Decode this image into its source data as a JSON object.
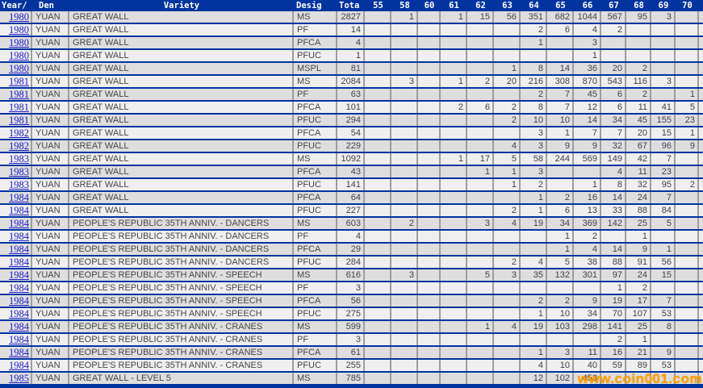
{
  "header": {
    "columns": [
      "Year/",
      "Den",
      "Variety",
      "Desig",
      "Tota",
      "55",
      "58",
      "60",
      "61",
      "62",
      "63",
      "64",
      "65",
      "66",
      "67",
      "68",
      "69",
      "70"
    ]
  },
  "grade_column_order": [
    "55",
    "58",
    "60",
    "61",
    "62",
    "63",
    "64",
    "65",
    "66",
    "67",
    "68",
    "69",
    "70"
  ],
  "rows": [
    {
      "year": "1980",
      "den": "YUAN",
      "variety": "GREAT WALL",
      "desig": "MS",
      "total": "2827",
      "grades": [
        "",
        "1",
        "",
        "1",
        "15",
        "56",
        "351",
        "682",
        "1044",
        "567",
        "95",
        "3",
        ""
      ]
    },
    {
      "year": "1980",
      "den": "YUAN",
      "variety": "GREAT WALL",
      "desig": "PF",
      "total": "14",
      "grades": [
        "",
        "",
        "",
        "",
        "",
        "",
        "2",
        "6",
        "4",
        "2",
        "",
        "",
        ""
      ]
    },
    {
      "year": "1980",
      "den": "YUAN",
      "variety": "GREAT WALL",
      "desig": "PFCA",
      "total": "4",
      "grades": [
        "",
        "",
        "",
        "",
        "",
        "",
        "1",
        "",
        "3",
        "",
        "",
        "",
        ""
      ]
    },
    {
      "year": "1980",
      "den": "YUAN",
      "variety": "GREAT WALL",
      "desig": "PFUC",
      "total": "1",
      "grades": [
        "",
        "",
        "",
        "",
        "",
        "",
        "",
        "",
        "1",
        "",
        "",
        "",
        ""
      ]
    },
    {
      "year": "1980",
      "den": "YUAN",
      "variety": "GREAT WALL",
      "desig": "MSPL",
      "total": "81",
      "grades": [
        "",
        "",
        "",
        "",
        "",
        "1",
        "8",
        "14",
        "36",
        "20",
        "2",
        "",
        ""
      ]
    },
    {
      "year": "1981",
      "den": "YUAN",
      "variety": "GREAT WALL",
      "desig": "MS",
      "total": "2084",
      "grades": [
        "",
        "3",
        "",
        "1",
        "2",
        "20",
        "216",
        "308",
        "870",
        "543",
        "116",
        "3",
        ""
      ]
    },
    {
      "year": "1981",
      "den": "YUAN",
      "variety": "GREAT WALL",
      "desig": "PF",
      "total": "63",
      "grades": [
        "",
        "",
        "",
        "",
        "",
        "",
        "2",
        "7",
        "45",
        "6",
        "2",
        "",
        "1"
      ]
    },
    {
      "year": "1981",
      "den": "YUAN",
      "variety": "GREAT WALL",
      "desig": "PFCA",
      "total": "101",
      "grades": [
        "",
        "",
        "",
        "2",
        "6",
        "2",
        "8",
        "7",
        "12",
        "6",
        "11",
        "41",
        "5"
      ]
    },
    {
      "year": "1981",
      "den": "YUAN",
      "variety": "GREAT WALL",
      "desig": "PFUC",
      "total": "294",
      "grades": [
        "",
        "",
        "",
        "",
        "",
        "2",
        "10",
        "10",
        "14",
        "34",
        "45",
        "155",
        "23"
      ]
    },
    {
      "year": "1982",
      "den": "YUAN",
      "variety": "GREAT WALL",
      "desig": "PFCA",
      "total": "54",
      "grades": [
        "",
        "",
        "",
        "",
        "",
        "",
        "3",
        "1",
        "7",
        "7",
        "20",
        "15",
        "1"
      ]
    },
    {
      "year": "1982",
      "den": "YUAN",
      "variety": "GREAT WALL",
      "desig": "PFUC",
      "total": "229",
      "grades": [
        "",
        "",
        "",
        "",
        "",
        "4",
        "3",
        "9",
        "9",
        "32",
        "67",
        "96",
        "9"
      ]
    },
    {
      "year": "1983",
      "den": "YUAN",
      "variety": "GREAT WALL",
      "desig": "MS",
      "total": "1092",
      "grades": [
        "",
        "",
        "",
        "1",
        "17",
        "5",
        "58",
        "244",
        "569",
        "149",
        "42",
        "7",
        ""
      ]
    },
    {
      "year": "1983",
      "den": "YUAN",
      "variety": "GREAT WALL",
      "desig": "PFCA",
      "total": "43",
      "grades": [
        "",
        "",
        "",
        "",
        "1",
        "1",
        "3",
        "",
        "",
        "4",
        "11",
        "23",
        ""
      ]
    },
    {
      "year": "1983",
      "den": "YUAN",
      "variety": "GREAT WALL",
      "desig": "PFUC",
      "total": "141",
      "grades": [
        "",
        "",
        "",
        "",
        "",
        "1",
        "2",
        "",
        "1",
        "8",
        "32",
        "95",
        "2"
      ]
    },
    {
      "year": "1984",
      "den": "YUAN",
      "variety": "GREAT WALL",
      "desig": "PFCA",
      "total": "64",
      "grades": [
        "",
        "",
        "",
        "",
        "",
        "",
        "1",
        "2",
        "16",
        "14",
        "24",
        "7",
        ""
      ]
    },
    {
      "year": "1984",
      "den": "YUAN",
      "variety": "GREAT WALL",
      "desig": "PFUC",
      "total": "227",
      "grades": [
        "",
        "",
        "",
        "",
        "",
        "2",
        "1",
        "6",
        "13",
        "33",
        "88",
        "84",
        ""
      ]
    },
    {
      "year": "1984",
      "den": "YUAN",
      "variety": "PEOPLE'S REPUBLIC 35TH ANNIV. - DANCERS",
      "desig": "MS",
      "total": "603",
      "grades": [
        "",
        "2",
        "",
        "",
        "3",
        "4",
        "19",
        "34",
        "369",
        "142",
        "25",
        "5",
        ""
      ]
    },
    {
      "year": "1984",
      "den": "YUAN",
      "variety": "PEOPLE'S REPUBLIC 35TH ANNIV. - DANCERS",
      "desig": "PF",
      "total": "4",
      "grades": [
        "",
        "",
        "",
        "",
        "",
        "",
        "",
        "1",
        "2",
        "",
        "1",
        "",
        ""
      ]
    },
    {
      "year": "1984",
      "den": "YUAN",
      "variety": "PEOPLE'S REPUBLIC 35TH ANNIV. - DANCERS",
      "desig": "PFCA",
      "total": "29",
      "grades": [
        "",
        "",
        "",
        "",
        "",
        "",
        "",
        "1",
        "4",
        "14",
        "9",
        "1",
        ""
      ]
    },
    {
      "year": "1984",
      "den": "YUAN",
      "variety": "PEOPLE'S REPUBLIC 35TH ANNIV. - DANCERS",
      "desig": "PFUC",
      "total": "284",
      "grades": [
        "",
        "",
        "",
        "",
        "",
        "2",
        "4",
        "5",
        "38",
        "88",
        "91",
        "56",
        ""
      ]
    },
    {
      "year": "1984",
      "den": "YUAN",
      "variety": "PEOPLE'S REPUBLIC 35TH ANNIV. - SPEECH",
      "desig": "MS",
      "total": "616",
      "grades": [
        "",
        "3",
        "",
        "",
        "5",
        "3",
        "35",
        "132",
        "301",
        "97",
        "24",
        "15",
        ""
      ]
    },
    {
      "year": "1984",
      "den": "YUAN",
      "variety": "PEOPLE'S REPUBLIC 35TH ANNIV. - SPEECH",
      "desig": "PF",
      "total": "3",
      "grades": [
        "",
        "",
        "",
        "",
        "",
        "",
        "",
        "",
        "",
        "1",
        "2",
        "",
        ""
      ]
    },
    {
      "year": "1984",
      "den": "YUAN",
      "variety": "PEOPLE'S REPUBLIC 35TH ANNIV. - SPEECH",
      "desig": "PFCA",
      "total": "56",
      "grades": [
        "",
        "",
        "",
        "",
        "",
        "",
        "2",
        "2",
        "9",
        "19",
        "17",
        "7",
        ""
      ]
    },
    {
      "year": "1984",
      "den": "YUAN",
      "variety": "PEOPLE'S REPUBLIC 35TH ANNIV. - SPEECH",
      "desig": "PFUC",
      "total": "275",
      "grades": [
        "",
        "",
        "",
        "",
        "",
        "",
        "1",
        "10",
        "34",
        "70",
        "107",
        "53",
        ""
      ]
    },
    {
      "year": "1984",
      "den": "YUAN",
      "variety": "PEOPLE'S REPUBLIC 35TH ANNIV. - CRANES",
      "desig": "MS",
      "total": "599",
      "grades": [
        "",
        "",
        "",
        "",
        "1",
        "4",
        "19",
        "103",
        "298",
        "141",
        "25",
        "8",
        ""
      ]
    },
    {
      "year": "1984",
      "den": "YUAN",
      "variety": "PEOPLE'S REPUBLIC 35TH ANNIV. - CRANES",
      "desig": "PF",
      "total": "3",
      "grades": [
        "",
        "",
        "",
        "",
        "",
        "",
        "",
        "",
        "",
        "2",
        "1",
        "",
        ""
      ]
    },
    {
      "year": "1984",
      "den": "YUAN",
      "variety": "PEOPLE'S REPUBLIC 35TH ANNIV. - CRANES",
      "desig": "PFCA",
      "total": "61",
      "grades": [
        "",
        "",
        "",
        "",
        "",
        "",
        "1",
        "3",
        "11",
        "16",
        "21",
        "9",
        ""
      ]
    },
    {
      "year": "1984",
      "den": "YUAN",
      "variety": "PEOPLE'S REPUBLIC 35TH ANNIV. - CRANES",
      "desig": "PFUC",
      "total": "255",
      "grades": [
        "",
        "",
        "",
        "",
        "",
        "",
        "4",
        "10",
        "40",
        "59",
        "89",
        "53",
        ""
      ]
    },
    {
      "year": "1985",
      "den": "YUAN",
      "variety": "GREAT WALL - LEVEL 5",
      "desig": "MS",
      "total": "785",
      "grades": [
        "",
        "",
        "",
        "",
        "",
        "",
        "12",
        "102",
        "458",
        "",
        "",
        "",
        ""
      ]
    }
  ],
  "watermark": "www.coin001.com",
  "colors": {
    "header_bg": "#0234a0",
    "row_separator": "#0234a0",
    "row_light": "#efefef",
    "row_dark": "#dedede",
    "gridline": "#9e9e9e",
    "year_link": "#1a1acc",
    "watermark": "#ffa200"
  }
}
